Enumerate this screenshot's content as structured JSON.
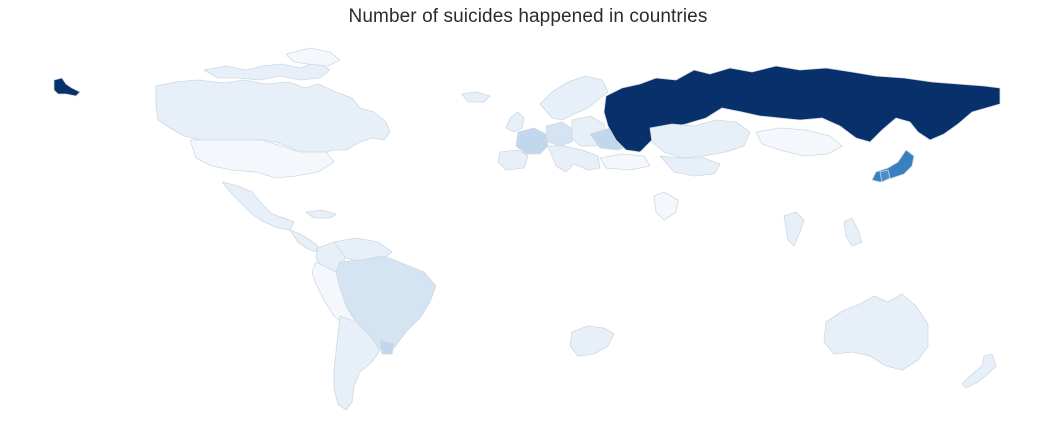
{
  "title": "Number of suicides happened in countries",
  "colors": {
    "t0": "#f4f8fd",
    "t1": "#e7eff8",
    "t2": "#d5e4f3",
    "t3": "#c3d7ec",
    "t6": "#4a8ec8",
    "t7": "#3a7fc0",
    "t9": "#08306b",
    "border": "#cfd8e3"
  },
  "regions": [
    {
      "name": "canada",
      "tone": "t1"
    },
    {
      "name": "arctic-islands",
      "tone": "t1"
    },
    {
      "name": "greenland",
      "tone": "t0"
    },
    {
      "name": "united-states",
      "tone": "t0"
    },
    {
      "name": "alaska",
      "tone": "t9"
    },
    {
      "name": "mexico",
      "tone": "t1"
    },
    {
      "name": "central-america",
      "tone": "t1"
    },
    {
      "name": "caribbean",
      "tone": "t1"
    },
    {
      "name": "colombia",
      "tone": "t1"
    },
    {
      "name": "venezuela",
      "tone": "t1"
    },
    {
      "name": "brazil",
      "tone": "t2"
    },
    {
      "name": "peru-bolivia",
      "tone": "t0"
    },
    {
      "name": "argentina-chile",
      "tone": "t1"
    },
    {
      "name": "uruguay",
      "tone": "t3"
    },
    {
      "name": "iceland",
      "tone": "t1"
    },
    {
      "name": "scandinavia",
      "tone": "t1"
    },
    {
      "name": "uk-ireland",
      "tone": "t1"
    },
    {
      "name": "france",
      "tone": "t3"
    },
    {
      "name": "spain",
      "tone": "t1"
    },
    {
      "name": "germany",
      "tone": "t2"
    },
    {
      "name": "central-europe",
      "tone": "t1"
    },
    {
      "name": "ukraine",
      "tone": "t3"
    },
    {
      "name": "balkans-italy",
      "tone": "t1"
    },
    {
      "name": "turkey",
      "tone": "t0"
    },
    {
      "name": "russia",
      "tone": "t9"
    },
    {
      "name": "kazakhstan",
      "tone": "t1"
    },
    {
      "name": "mongolia",
      "tone": "t0"
    },
    {
      "name": "central-asia",
      "tone": "t1"
    },
    {
      "name": "japan",
      "tone": "t7"
    },
    {
      "name": "south-korea",
      "tone": "t6"
    },
    {
      "name": "thailand",
      "tone": "t1"
    },
    {
      "name": "philippines",
      "tone": "t1"
    },
    {
      "name": "middle-east",
      "tone": "t0"
    },
    {
      "name": "south-africa",
      "tone": "t1"
    },
    {
      "name": "australia",
      "tone": "t1"
    },
    {
      "name": "new-zealand",
      "tone": "t1"
    }
  ]
}
